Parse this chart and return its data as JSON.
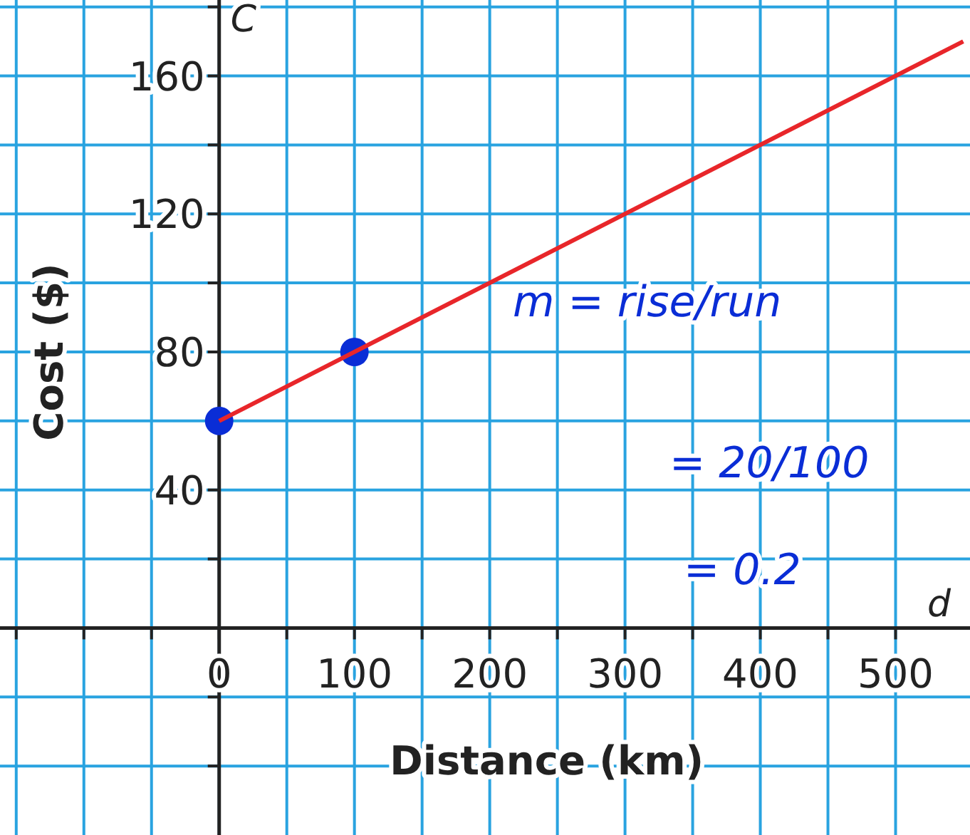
{
  "chart_data": {
    "type": "line",
    "xlabel": "Distance (km)",
    "ylabel": "Cost ($)",
    "xlim": [
      -162,
      555
    ],
    "ylim": [
      -60,
      182
    ],
    "xticks": [
      {
        "value": -150,
        "label": null
      },
      {
        "value": -100,
        "label": null
      },
      {
        "value": -50,
        "label": null
      },
      0,
      {
        "value": 50,
        "label": null
      },
      100,
      {
        "value": 150,
        "label": null
      },
      200,
      {
        "value": 250,
        "label": null
      },
      300,
      {
        "value": 350,
        "label": null
      },
      400,
      {
        "value": 450,
        "label": null
      },
      500
    ],
    "yticks": [
      {
        "value": -40,
        "label": null
      },
      {
        "value": -20,
        "label": null
      },
      {
        "value": 20,
        "label": null
      },
      40,
      {
        "value": 60,
        "label": null
      },
      80,
      {
        "value": 100,
        "label": null
      },
      120,
      {
        "value": 140,
        "label": null
      },
      160,
      {
        "value": 180,
        "label": null
      }
    ],
    "grid": true,
    "series": [
      {
        "color": "#e8262a",
        "x": [
          0,
          550
        ],
        "values": [
          60,
          170
        ]
      },
      {
        "type": "scatter",
        "color": "#0a2dd6",
        "x": [
          0,
          100
        ],
        "values": [
          60,
          80
        ],
        "marker": "circle"
      }
    ],
    "annotations": [
      "C",
      "d",
      "m = rise/run",
      "= 20/100",
      "= 0.2"
    ]
  }
}
